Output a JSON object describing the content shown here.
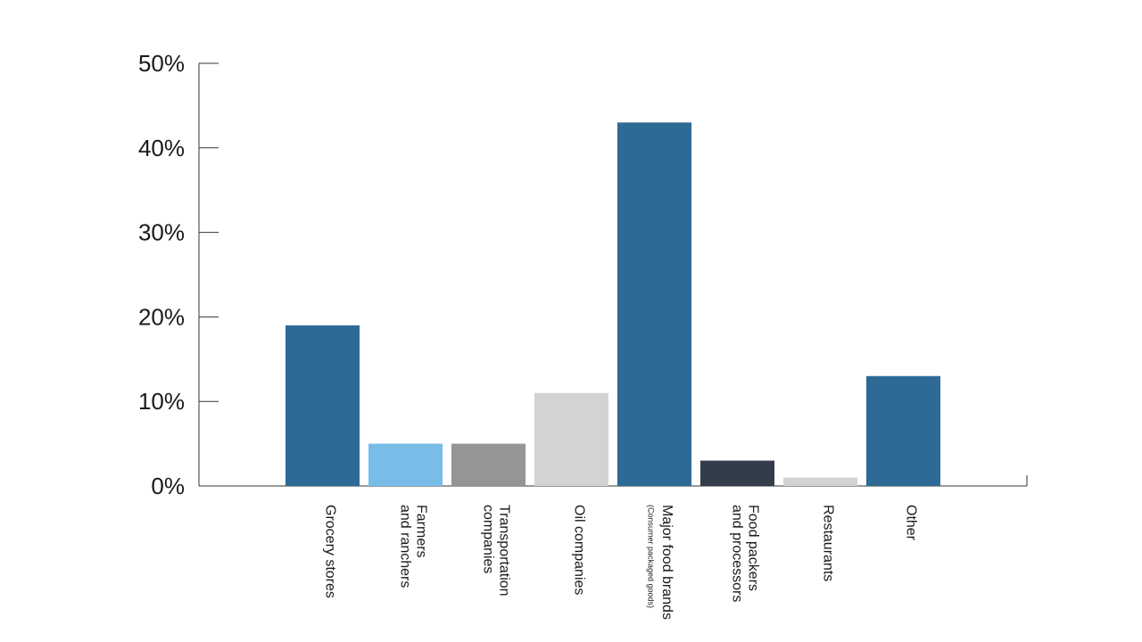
{
  "chart_data": {
    "type": "bar",
    "title": "",
    "xlabel": "",
    "ylabel": "",
    "ylim": [
      0,
      50
    ],
    "yticks": [
      "0%",
      "10%",
      "20%",
      "30%",
      "40%",
      "50%"
    ],
    "grid": false,
    "legend": "none",
    "categories": [
      {
        "lines": [
          "Grocery stores"
        ],
        "sub": ""
      },
      {
        "lines": [
          "Farmers",
          "and ranchers"
        ],
        "sub": ""
      },
      {
        "lines": [
          "Transportation",
          "companies"
        ],
        "sub": ""
      },
      {
        "lines": [
          "Oil companies"
        ],
        "sub": ""
      },
      {
        "lines": [
          "Major food brands"
        ],
        "sub": "(Consumer packaged goods)"
      },
      {
        "lines": [
          "Food packers",
          "and processors"
        ],
        "sub": ""
      },
      {
        "lines": [
          "Restaurants"
        ],
        "sub": ""
      },
      {
        "lines": [
          "Other"
        ],
        "sub": ""
      }
    ],
    "values": [
      19,
      5,
      5,
      11,
      43,
      3,
      1,
      13
    ],
    "colors": [
      "#2d6a96",
      "#77bde8",
      "#959598",
      "#d2d3d4",
      "#2d6a96",
      "#333d49",
      "#d2d3d4",
      "#2d6a96"
    ],
    "axis_color": "#333333"
  }
}
